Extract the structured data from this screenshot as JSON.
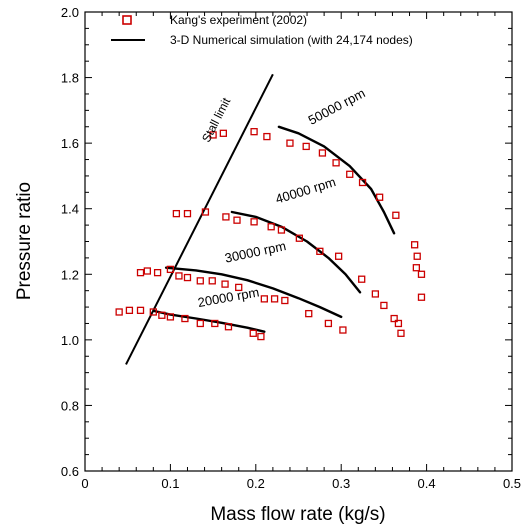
{
  "chart_data": {
    "type": "scatter",
    "xlabel": "Mass flow rate (kg/s)",
    "ylabel": "Pressure ratio",
    "xlim": [
      0,
      0.5
    ],
    "ylim": [
      0.6,
      2.0
    ],
    "xticks": [
      0,
      0.1,
      0.2,
      0.3,
      0.4,
      0.5
    ],
    "xtick_labels": [
      "0",
      "0.1",
      "0.2",
      "0.3",
      "0.4",
      "0.5"
    ],
    "yticks": [
      0.6,
      0.8,
      1.0,
      1.2,
      1.4,
      1.6,
      1.8,
      2.0
    ],
    "ytick_labels": [
      "0.6",
      "0.8",
      "1.0",
      "1.2",
      "1.4",
      "1.6",
      "1.8",
      "2.0"
    ],
    "grid": false,
    "legend_position": "top-left",
    "legend": [
      {
        "label": "Kang's experiment (2002)",
        "marker": "open-square",
        "color": "#cc0000"
      },
      {
        "label": "3-D Numerical simulation (with 24,174 nodes)",
        "marker": "line",
        "color": "#000000"
      }
    ],
    "series": [
      {
        "name": "Kang's experiment (2002)",
        "kind": "scatter",
        "color": "#cc0000",
        "x": [
          0.04,
          0.052,
          0.065,
          0.08,
          0.09,
          0.1,
          0.117,
          0.135,
          0.152,
          0.168,
          0.197,
          0.206,
          0.065,
          0.073,
          0.085,
          0.1,
          0.11,
          0.12,
          0.135,
          0.149,
          0.164,
          0.18,
          0.21,
          0.222,
          0.234,
          0.262,
          0.285,
          0.302,
          0.107,
          0.12,
          0.141,
          0.165,
          0.178,
          0.198,
          0.218,
          0.23,
          0.251,
          0.275,
          0.297,
          0.324,
          0.15,
          0.162,
          0.198,
          0.213,
          0.24,
          0.259,
          0.278,
          0.294,
          0.31,
          0.325,
          0.345,
          0.364,
          0.34,
          0.35,
          0.362,
          0.367,
          0.386,
          0.389,
          0.394,
          0.394,
          0.388,
          0.37
        ],
        "y": [
          1.085,
          1.09,
          1.09,
          1.085,
          1.075,
          1.07,
          1.065,
          1.05,
          1.05,
          1.04,
          1.02,
          1.01,
          1.205,
          1.21,
          1.205,
          1.215,
          1.195,
          1.19,
          1.18,
          1.18,
          1.17,
          1.16,
          1.125,
          1.125,
          1.12,
          1.08,
          1.05,
          1.03,
          1.385,
          1.385,
          1.39,
          1.375,
          1.365,
          1.36,
          1.345,
          1.335,
          1.31,
          1.27,
          1.255,
          1.185,
          1.625,
          1.63,
          1.635,
          1.62,
          1.6,
          1.59,
          1.57,
          1.54,
          1.505,
          1.48,
          1.435,
          1.38,
          1.14,
          1.105,
          1.065,
          1.05,
          1.29,
          1.255,
          1.2,
          1.13,
          1.22,
          1.02
        ]
      },
      {
        "name": "3-D Numerical simulation (with 24,174 nodes)",
        "kind": "line",
        "color": "#000000",
        "curves": [
          {
            "label": "20000 rpm",
            "x": [
              0.081,
              0.1,
              0.13,
              0.16,
              0.19,
              0.21
            ],
            "y": [
              1.088,
              1.077,
              1.065,
              1.052,
              1.037,
              1.025
            ]
          },
          {
            "label": "30000 rpm",
            "x": [
              0.095,
              0.13,
              0.16,
              0.19,
              0.22,
              0.25,
              0.275,
              0.3
            ],
            "y": [
              1.22,
              1.212,
              1.2,
              1.182,
              1.157,
              1.127,
              1.1,
              1.07
            ]
          },
          {
            "label": "40000 rpm",
            "x": [
              0.172,
              0.2,
              0.23,
              0.26,
              0.285,
              0.305,
              0.322
            ],
            "y": [
              1.39,
              1.375,
              1.345,
              1.3,
              1.25,
              1.2,
              1.145
            ]
          },
          {
            "label": "50000 rpm",
            "x": [
              0.227,
              0.25,
              0.28,
              0.31,
              0.335,
              0.35,
              0.362
            ],
            "y": [
              1.65,
              1.63,
              1.59,
              1.53,
              1.46,
              1.39,
              1.325
            ]
          }
        ]
      },
      {
        "name": "Stall limit",
        "kind": "line",
        "color": "#000000",
        "x": [
          0.048,
          0.22
        ],
        "y": [
          0.925,
          1.81
        ]
      }
    ],
    "annotations": [
      {
        "text": "20000 rpm",
        "x": 0.133,
        "y": 1.1,
        "angle": -10
      },
      {
        "text": "30000 rpm",
        "x": 0.165,
        "y": 1.235,
        "angle": -12
      },
      {
        "text": "40000 rpm",
        "x": 0.225,
        "y": 1.415,
        "angle": -17
      },
      {
        "text": "50000 rpm",
        "x": 0.265,
        "y": 1.655,
        "angle": -28
      },
      {
        "text": "Stall limit",
        "x": 0.145,
        "y": 1.6,
        "angle": -63
      }
    ]
  }
}
